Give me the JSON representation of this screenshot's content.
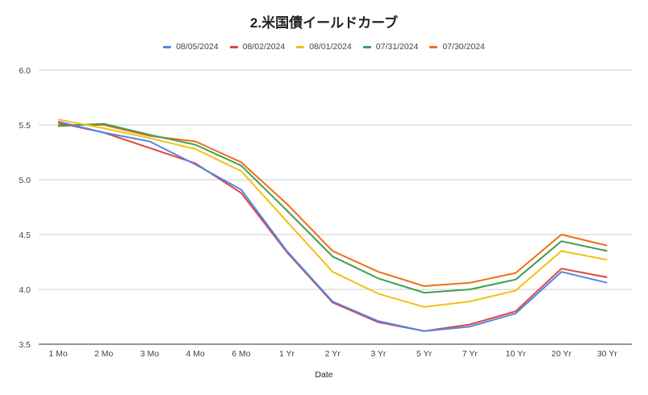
{
  "chart_data": {
    "type": "line",
    "title": "2.米国債イールドカーブ",
    "xlabel": "Date",
    "ylabel": "",
    "ylim": [
      3.5,
      6.0
    ],
    "yticks": [
      "3.5",
      "4.0",
      "4.5",
      "5.0",
      "5.5",
      "6.0"
    ],
    "grid": true,
    "legend_position": "top",
    "categories": [
      "1 Mo",
      "2 Mo",
      "3 Mo",
      "4 Mo",
      "6 Mo",
      "1 Yr",
      "2 Yr",
      "3 Yr",
      "5 Yr",
      "7 Yr",
      "10 Yr",
      "20 Yr",
      "30 Yr"
    ],
    "series": [
      {
        "name": "08/05/2024",
        "color": "#4f86e8",
        "values": [
          5.53,
          5.43,
          5.35,
          5.14,
          4.91,
          4.35,
          3.89,
          3.71,
          3.62,
          3.66,
          3.78,
          4.16,
          4.06
        ]
      },
      {
        "name": "08/02/2024",
        "color": "#e0453a",
        "values": [
          5.52,
          5.43,
          5.29,
          5.15,
          4.88,
          4.34,
          3.88,
          3.7,
          3.62,
          3.68,
          3.8,
          4.19,
          4.11
        ]
      },
      {
        "name": "08/01/2024",
        "color": "#f5bf10",
        "values": [
          5.55,
          5.47,
          5.38,
          5.28,
          5.08,
          4.62,
          4.16,
          3.96,
          3.84,
          3.89,
          3.99,
          4.35,
          4.27
        ]
      },
      {
        "name": "07/31/2024",
        "color": "#3f9f50",
        "values": [
          5.49,
          5.51,
          5.41,
          5.32,
          5.13,
          4.72,
          4.3,
          4.1,
          3.97,
          4.0,
          4.09,
          4.44,
          4.35
        ]
      },
      {
        "name": "07/30/2024",
        "color": "#f06d16",
        "values": [
          5.5,
          5.5,
          5.4,
          5.35,
          5.16,
          4.78,
          4.35,
          4.16,
          4.03,
          4.06,
          4.15,
          4.5,
          4.4
        ]
      }
    ]
  }
}
